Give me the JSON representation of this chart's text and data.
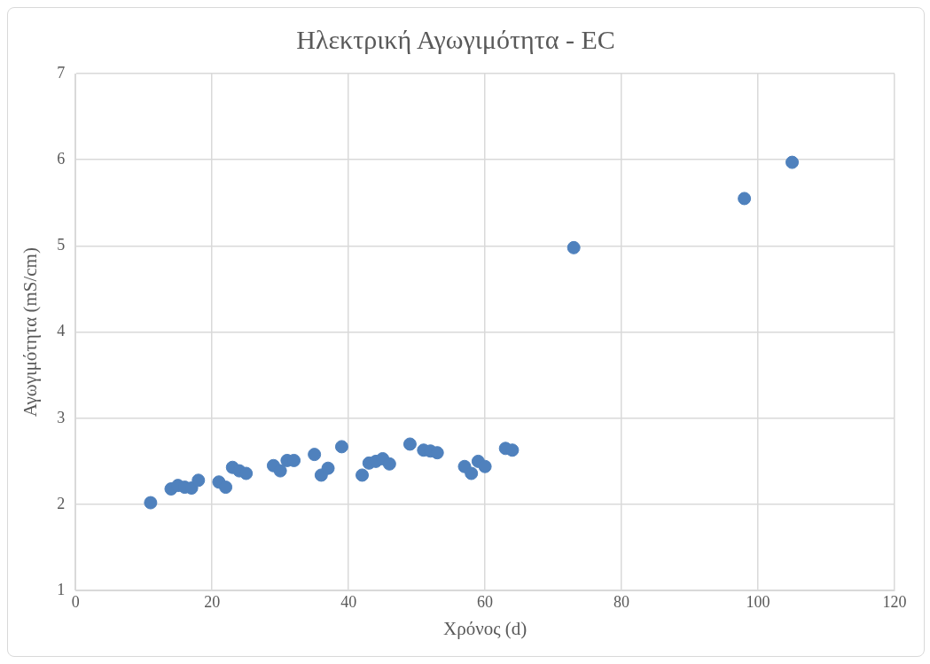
{
  "chart_data": {
    "type": "scatter",
    "title": "Ηλεκτρική Αγωγιμότητα - EC",
    "xlabel": "Χρόνος (d)",
    "ylabel": "Αγωγιμότητα (mS/cm)",
    "series": [
      {
        "color": "#4f81bd",
        "x": [
          11,
          14,
          15,
          16,
          17,
          18,
          21,
          22,
          23,
          24,
          25,
          29,
          30,
          31,
          32,
          35,
          36,
          37,
          39,
          42,
          43,
          44,
          45,
          46,
          49,
          51,
          52,
          53,
          57,
          58,
          59,
          60,
          63,
          64,
          73,
          98,
          105
        ],
        "values": [
          2.02,
          2.18,
          2.22,
          2.2,
          2.19,
          2.28,
          2.26,
          2.2,
          2.43,
          2.39,
          2.36,
          2.45,
          2.39,
          2.51,
          2.51,
          2.58,
          2.34,
          2.42,
          2.67,
          2.34,
          2.48,
          2.5,
          2.53,
          2.47,
          2.7,
          2.63,
          2.62,
          2.6,
          2.44,
          2.36,
          2.5,
          2.44,
          2.65,
          2.63,
          4.98,
          5.55,
          5.97
        ]
      }
    ],
    "xlim": [
      0,
      120
    ],
    "xticks": [
      0,
      20,
      40,
      60,
      80,
      100,
      120
    ],
    "ylim": [
      1,
      7
    ],
    "yticks": [
      1,
      2,
      3,
      4,
      5,
      6,
      7
    ],
    "grid": true,
    "marker": "circle"
  }
}
